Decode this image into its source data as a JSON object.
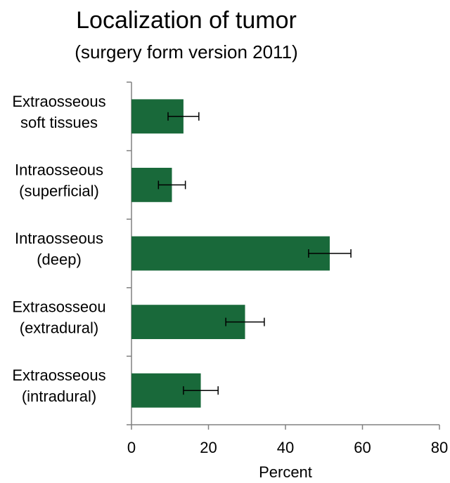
{
  "chart_data": {
    "type": "bar",
    "orientation": "horizontal",
    "title": "Localization of tumor",
    "subtitle": "(surgery form version 2011)",
    "xlabel": "Percent",
    "ylabel": "",
    "xlim": [
      0,
      80
    ],
    "xticks": [
      0,
      20,
      40,
      60,
      80
    ],
    "grid": false,
    "bar_color": "#19693a",
    "categories": [
      [
        "Extraosseous",
        "soft tissues"
      ],
      [
        "Intraosseous",
        "(superficial)"
      ],
      [
        "Intraosseous",
        "(deep)"
      ],
      [
        "Extrasosseou",
        "(extradural)"
      ],
      [
        "Extraosseous",
        "(intradural)"
      ]
    ],
    "values": [
      13.5,
      10.5,
      51.5,
      29.5,
      18
    ],
    "error": [
      4,
      3.5,
      5.5,
      5,
      4.5
    ]
  }
}
